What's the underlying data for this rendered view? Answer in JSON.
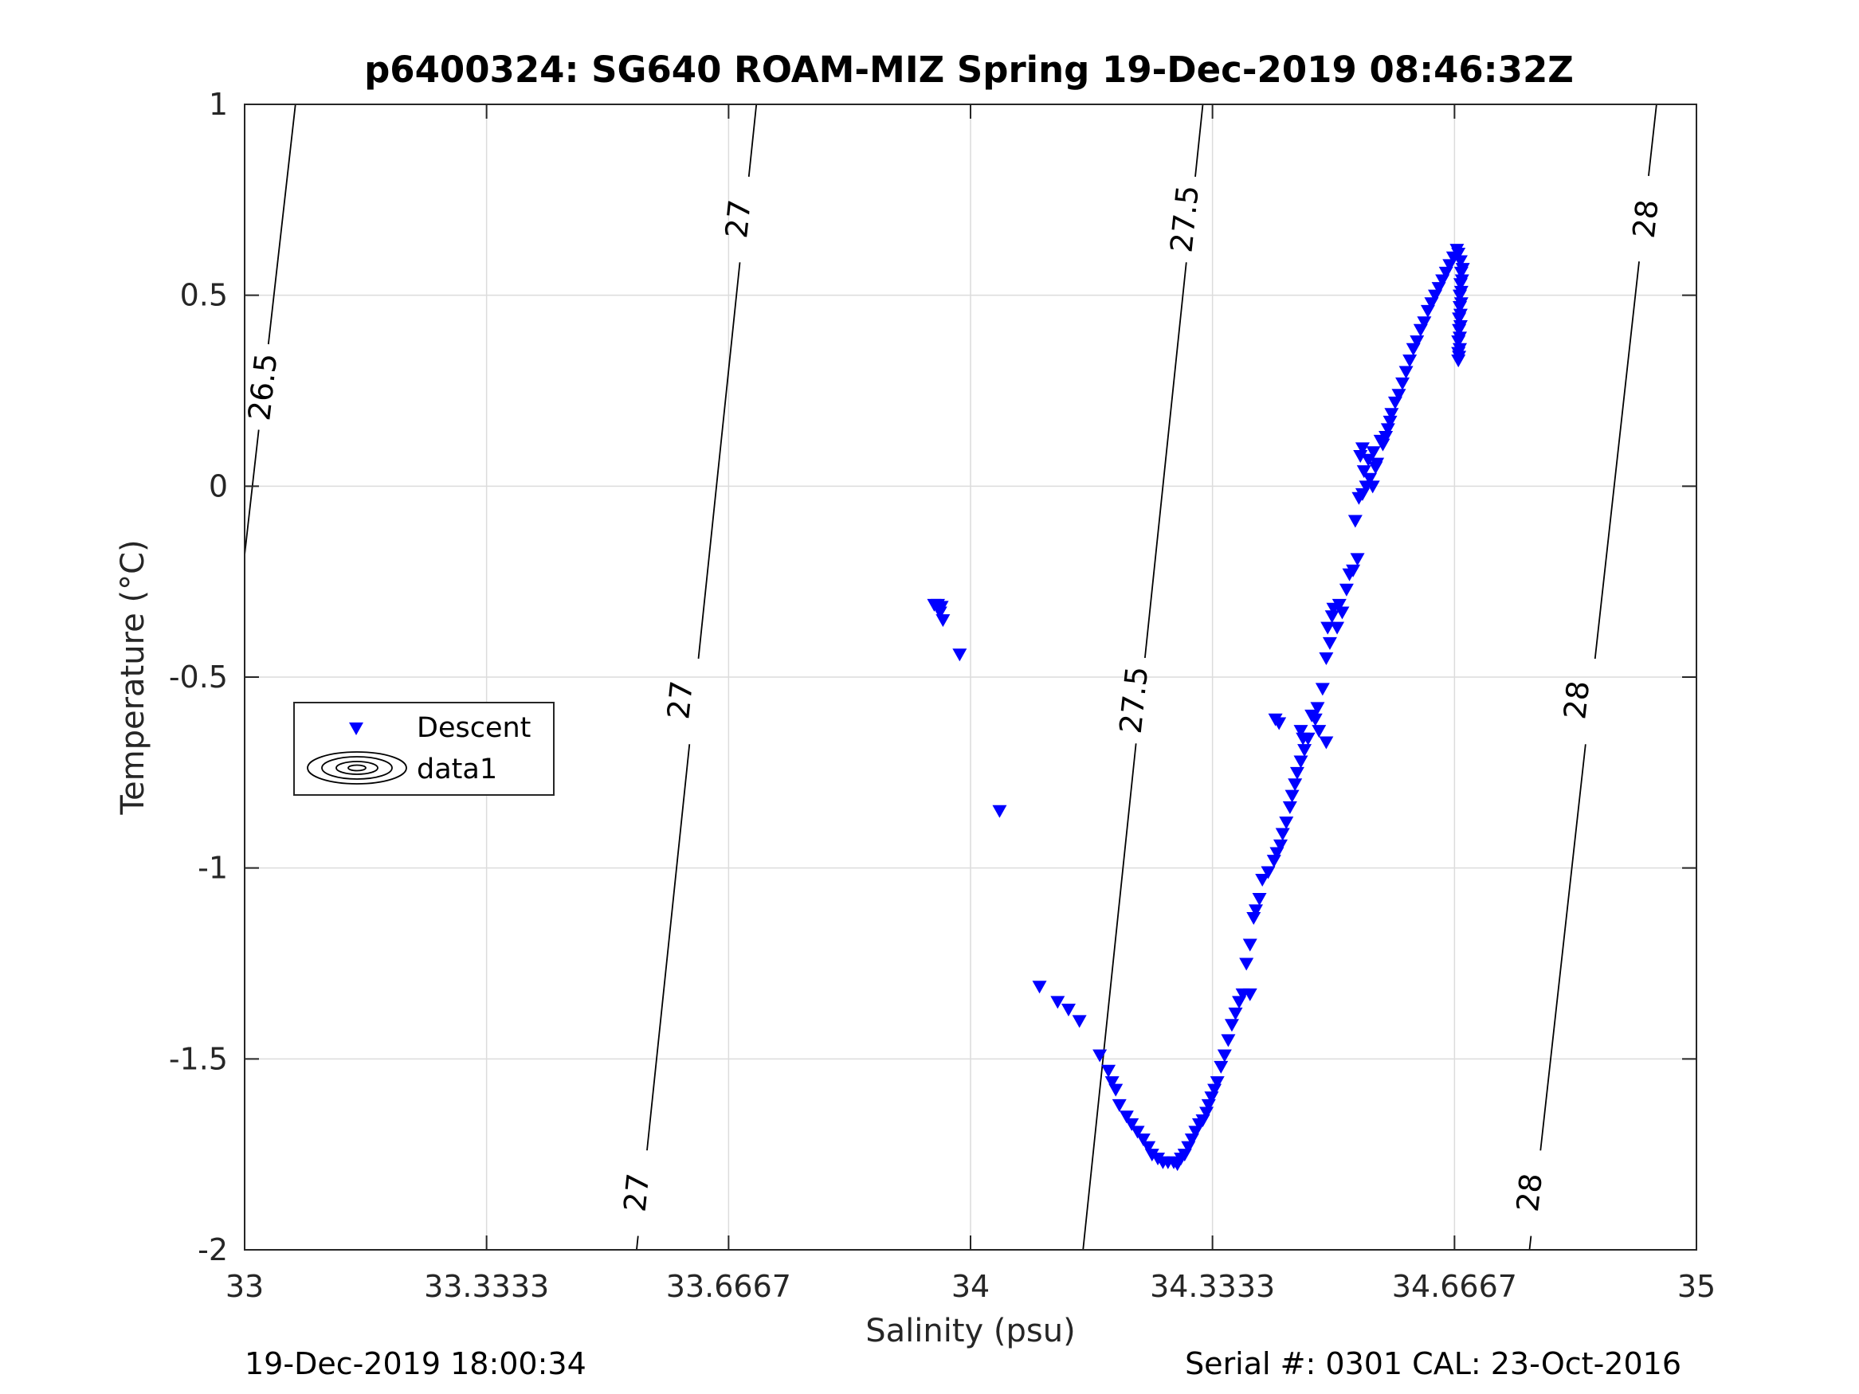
{
  "chart_data": {
    "type": "scatter",
    "title": "p6400324: SG640 ROAM-MIZ Spring 19-Dec-2019 08:46:32Z",
    "xlabel": "Salinity (psu)",
    "ylabel": "Temperature (°C)",
    "xlim": [
      33,
      35
    ],
    "ylim": [
      -2,
      1
    ],
    "x_ticks": [
      33,
      33.3333,
      33.6667,
      34,
      34.3333,
      34.6667,
      35
    ],
    "x_tick_labels": [
      "33",
      "33.3333",
      "33.6667",
      "34",
      "34.3333",
      "34.6667",
      "35"
    ],
    "y_ticks": [
      -2,
      -1.5,
      -1,
      -0.5,
      0,
      0.5,
      1
    ],
    "y_tick_labels": [
      "-2",
      "-1.5",
      "-1",
      "-0.5",
      "0",
      "0.5",
      "1"
    ],
    "grid": true,
    "legend": {
      "position": "left-middle",
      "entries": [
        {
          "label": "Descent",
          "marker": "triangle-down",
          "color": "#0000ff"
        },
        {
          "label": "data1",
          "marker": "contour",
          "color": "#000000"
        }
      ]
    },
    "isopycnals": [
      {
        "label": "26.5",
        "points": [
          [
            33.0,
            -0.18
          ],
          [
            33.07,
            1.0
          ]
        ],
        "labels_at": [
          [
            33.025,
            0.26
          ]
        ]
      },
      {
        "label": "27",
        "points": [
          [
            33.54,
            -2.0
          ],
          [
            33.705,
            1.0
          ]
        ],
        "labels_at": [
          [
            33.54,
            -1.85
          ],
          [
            33.6,
            -0.56
          ],
          [
            33.68,
            0.7
          ]
        ]
      },
      {
        "label": "27.5",
        "points": [
          [
            34.155,
            -2.0
          ],
          [
            34.32,
            1.0
          ]
        ],
        "labels_at": [
          [
            34.225,
            -0.56
          ],
          [
            34.295,
            0.7
          ]
        ]
      },
      {
        "label": "28",
        "points": [
          [
            34.77,
            -2.0
          ],
          [
            34.945,
            1.0
          ]
        ],
        "labels_at": [
          [
            34.77,
            -1.85
          ],
          [
            34.835,
            -0.56
          ],
          [
            34.93,
            0.7
          ]
        ]
      }
    ],
    "series": [
      {
        "name": "Descent",
        "color": "#0000ff",
        "marker": "triangle-down",
        "points": [
          [
            33.95,
            -0.31
          ],
          [
            33.955,
            -0.31
          ],
          [
            33.96,
            -0.315
          ],
          [
            33.958,
            -0.33
          ],
          [
            33.962,
            -0.35
          ],
          [
            33.985,
            -0.44
          ],
          [
            34.04,
            -0.85
          ],
          [
            34.095,
            -1.31
          ],
          [
            34.12,
            -1.35
          ],
          [
            34.135,
            -1.37
          ],
          [
            34.15,
            -1.4
          ],
          [
            34.178,
            -1.49
          ],
          [
            34.19,
            -1.53
          ],
          [
            34.195,
            -1.56
          ],
          [
            34.2,
            -1.58
          ],
          [
            34.205,
            -1.62
          ],
          [
            34.215,
            -1.65
          ],
          [
            34.222,
            -1.67
          ],
          [
            34.23,
            -1.69
          ],
          [
            34.238,
            -1.71
          ],
          [
            34.245,
            -1.73
          ],
          [
            34.25,
            -1.75
          ],
          [
            34.258,
            -1.76
          ],
          [
            34.265,
            -1.77
          ],
          [
            34.272,
            -1.77
          ],
          [
            34.28,
            -1.77
          ],
          [
            34.285,
            -1.775
          ],
          [
            34.29,
            -1.76
          ],
          [
            34.295,
            -1.75
          ],
          [
            34.3,
            -1.73
          ],
          [
            34.305,
            -1.71
          ],
          [
            34.31,
            -1.69
          ],
          [
            34.315,
            -1.67
          ],
          [
            34.32,
            -1.66
          ],
          [
            34.325,
            -1.64
          ],
          [
            34.328,
            -1.62
          ],
          [
            34.332,
            -1.6
          ],
          [
            34.336,
            -1.58
          ],
          [
            34.34,
            -1.56
          ],
          [
            34.345,
            -1.52
          ],
          [
            34.35,
            -1.49
          ],
          [
            34.355,
            -1.45
          ],
          [
            34.36,
            -1.41
          ],
          [
            34.365,
            -1.38
          ],
          [
            34.37,
            -1.35
          ],
          [
            34.375,
            -1.33
          ],
          [
            34.385,
            -1.33
          ],
          [
            34.38,
            -1.25
          ],
          [
            34.385,
            -1.2
          ],
          [
            34.39,
            -1.13
          ],
          [
            34.393,
            -1.11
          ],
          [
            34.398,
            -1.08
          ],
          [
            34.402,
            -1.03
          ],
          [
            34.41,
            -1.01
          ],
          [
            34.418,
            -0.98
          ],
          [
            34.422,
            -0.96
          ],
          [
            34.427,
            -0.94
          ],
          [
            34.43,
            -0.91
          ],
          [
            34.435,
            -0.88
          ],
          [
            34.44,
            -0.84
          ],
          [
            34.443,
            -0.81
          ],
          [
            34.447,
            -0.78
          ],
          [
            34.45,
            -0.75
          ],
          [
            34.455,
            -0.72
          ],
          [
            34.46,
            -0.69
          ],
          [
            34.465,
            -0.66
          ],
          [
            34.42,
            -0.61
          ],
          [
            34.425,
            -0.62
          ],
          [
            34.455,
            -0.64
          ],
          [
            34.458,
            -0.66
          ],
          [
            34.47,
            -0.6
          ],
          [
            34.475,
            -0.61
          ],
          [
            34.478,
            -0.58
          ],
          [
            34.48,
            -0.64
          ],
          [
            34.49,
            -0.67
          ],
          [
            34.485,
            -0.53
          ],
          [
            34.49,
            -0.45
          ],
          [
            34.495,
            -0.41
          ],
          [
            34.492,
            -0.37
          ],
          [
            34.498,
            -0.34
          ],
          [
            34.5,
            -0.32
          ],
          [
            34.508,
            -0.31
          ],
          [
            34.512,
            -0.33
          ],
          [
            34.505,
            -0.37
          ],
          [
            34.518,
            -0.27
          ],
          [
            34.522,
            -0.23
          ],
          [
            34.527,
            -0.22
          ],
          [
            34.533,
            -0.19
          ],
          [
            34.53,
            -0.09
          ],
          [
            34.535,
            -0.03
          ],
          [
            34.54,
            -0.02
          ],
          [
            34.545,
            0.0
          ],
          [
            34.55,
            0.02
          ],
          [
            34.554,
            0.0
          ],
          [
            34.537,
            0.08
          ],
          [
            34.54,
            0.1
          ],
          [
            34.542,
            0.04
          ],
          [
            34.548,
            0.07
          ],
          [
            34.555,
            0.09
          ],
          [
            34.558,
            0.05
          ],
          [
            34.56,
            0.06
          ],
          [
            34.565,
            0.12
          ],
          [
            34.568,
            0.11
          ],
          [
            34.572,
            0.13
          ],
          [
            34.575,
            0.15
          ],
          [
            34.578,
            0.17
          ],
          [
            34.58,
            0.19
          ],
          [
            34.585,
            0.22
          ],
          [
            34.59,
            0.24
          ],
          [
            34.595,
            0.27
          ],
          [
            34.6,
            0.3
          ],
          [
            34.605,
            0.33
          ],
          [
            34.61,
            0.36
          ],
          [
            34.615,
            0.38
          ],
          [
            34.62,
            0.41
          ],
          [
            34.625,
            0.43
          ],
          [
            34.63,
            0.46
          ],
          [
            34.635,
            0.48
          ],
          [
            34.64,
            0.5
          ],
          [
            34.645,
            0.52
          ],
          [
            34.65,
            0.54
          ],
          [
            34.655,
            0.56
          ],
          [
            34.66,
            0.58
          ],
          [
            34.665,
            0.6
          ],
          [
            34.67,
            0.62
          ],
          [
            34.672,
            0.61
          ],
          [
            34.675,
            0.59
          ],
          [
            34.676,
            0.56
          ],
          [
            34.675,
            0.53
          ],
          [
            34.674,
            0.5
          ],
          [
            34.674,
            0.47
          ],
          [
            34.673,
            0.44
          ],
          [
            34.673,
            0.41
          ],
          [
            34.672,
            0.38
          ],
          [
            34.672,
            0.35
          ],
          [
            34.672,
            0.33
          ],
          [
            34.678,
            0.57
          ],
          [
            34.677,
            0.54
          ],
          [
            34.676,
            0.51
          ],
          [
            34.676,
            0.48
          ],
          [
            34.675,
            0.45
          ],
          [
            34.675,
            0.42
          ],
          [
            34.674,
            0.39
          ],
          [
            34.674,
            0.36
          ],
          [
            34.673,
            0.34
          ]
        ]
      }
    ]
  },
  "footer": {
    "left": "19-Dec-2019 18:00:34",
    "right": "Serial #: 0301  CAL: 23-Oct-2016"
  }
}
